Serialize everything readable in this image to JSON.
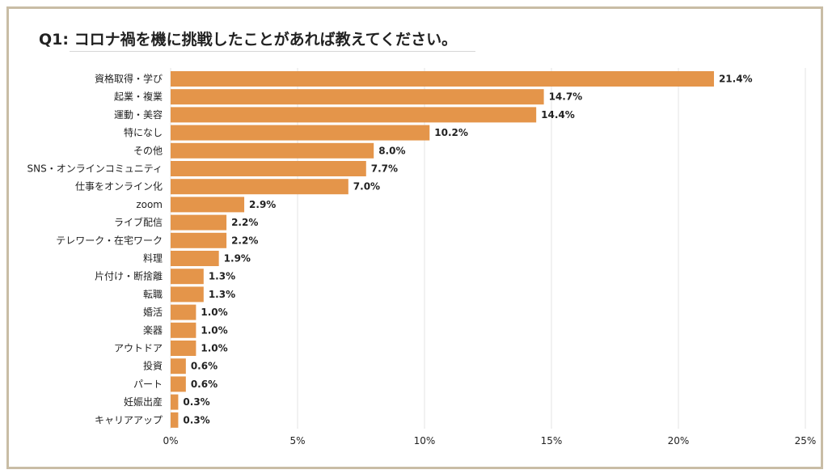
{
  "title": "Q1: コロナ禍を機に挑戦したことがあれば教えてください。",
  "chart_data": {
    "type": "bar",
    "orientation": "horizontal",
    "title": "Q1: コロナ禍を機に挑戦したことがあれば教えてください。",
    "xlabel": "",
    "ylabel": "",
    "xlim": [
      0,
      25
    ],
    "grid": true,
    "bar_color": "#e4954a",
    "categories": [
      "資格取得・学び",
      "起業・複業",
      "運動・美容",
      "特になし",
      "その他",
      "SNS・オンラインコミュニティ",
      "仕事をオンライン化",
      "zoom",
      "ライブ配信",
      "テレワーク・在宅ワーク",
      "料理",
      "片付け・断捨離",
      "転職",
      "婚活",
      "楽器",
      "アウトドア",
      "投資",
      "パート",
      "妊娠出産",
      "キャリアアップ"
    ],
    "values": [
      21.4,
      14.7,
      14.4,
      10.2,
      8.0,
      7.7,
      7.0,
      2.9,
      2.2,
      2.2,
      1.9,
      1.3,
      1.3,
      1.0,
      1.0,
      1.0,
      0.6,
      0.6,
      0.3,
      0.3
    ],
    "value_labels": [
      "21.4%",
      "14.7%",
      "14.4%",
      "10.2%",
      "8.0%",
      "7.7%",
      "7.0%",
      "2.9%",
      "2.2%",
      "2.2%",
      "1.9%",
      "1.3%",
      "1.3%",
      "1.0%",
      "1.0%",
      "1.0%",
      "0.6%",
      "0.6%",
      "0.3%",
      "0.3%"
    ],
    "x_ticks": [
      0,
      5,
      10,
      15,
      20,
      25
    ],
    "x_tick_labels": [
      "0%",
      "5%",
      "10%",
      "15%",
      "20%",
      "25%"
    ]
  }
}
